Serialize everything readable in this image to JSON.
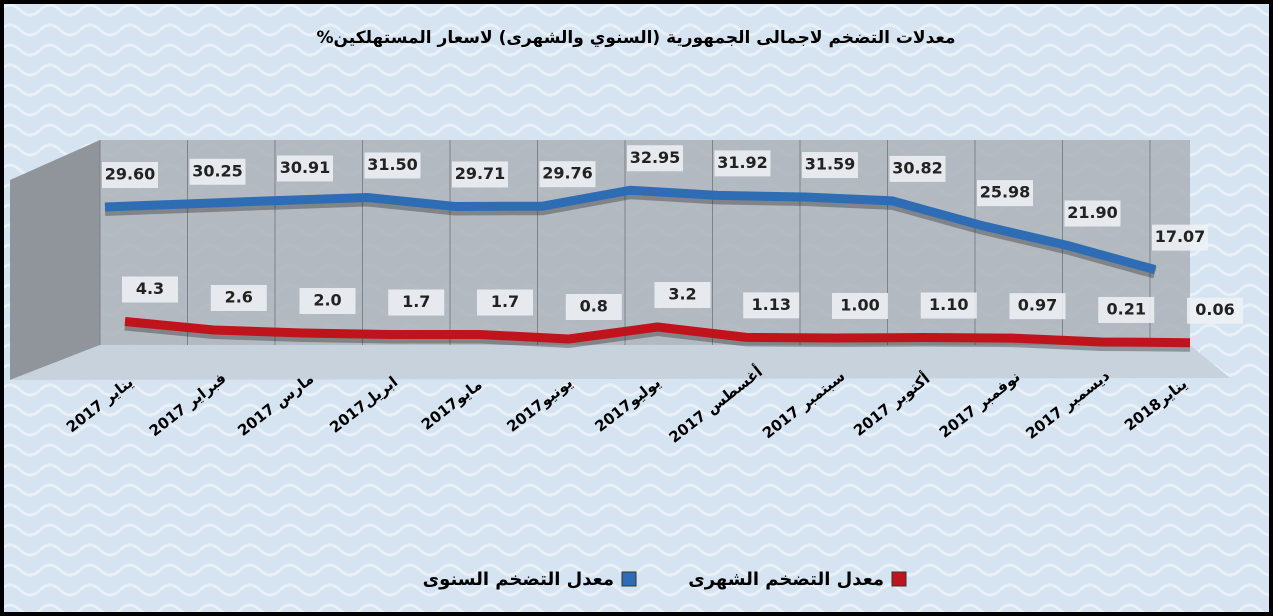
{
  "chart_data": {
    "type": "line",
    "title": "معدلات التضخم لاجمالى الجمهورية (السنوي والشهرى) لاسعار المستهلكين%",
    "categories": [
      "يناير 2017",
      "فبراير 2017",
      "مارس 2017",
      "ابريل2017",
      "مايو2017",
      "يونيو2017",
      "يوليو2017",
      "أغسطس 2017",
      "سبتمبر 2017",
      "أكتوبر 2017",
      "نوفمبر 2017",
      "ديسمبر 2017",
      "يناير2018"
    ],
    "series": [
      {
        "name": "معدل التضخم السنوى",
        "color": "#2e6db4",
        "values": [
          29.6,
          30.25,
          30.91,
          31.5,
          29.71,
          29.76,
          32.95,
          31.92,
          31.59,
          30.82,
          25.98,
          21.9,
          17.07
        ],
        "value_labels": [
          "29.60",
          "30.25",
          "30.91",
          "31.50",
          "29.71",
          "29.76",
          "32.95",
          "31.92",
          "31.59",
          "30.82",
          "25.98",
          "21.90",
          "17.07"
        ]
      },
      {
        "name": "معدل التضخم الشهرى",
        "color": "#c0141c",
        "values": [
          4.3,
          2.6,
          2.0,
          1.7,
          1.7,
          0.8,
          3.2,
          1.13,
          1.0,
          1.1,
          0.97,
          0.21,
          0.06
        ],
        "value_labels": [
          "4.3",
          "2.6",
          "2.0",
          "1.7",
          "1.7",
          "0.8",
          "3.2",
          "1.13",
          "1.00",
          "1.10",
          "0.97",
          "0.21",
          "0.06"
        ]
      }
    ],
    "ylim": [
      0,
      35
    ]
  }
}
